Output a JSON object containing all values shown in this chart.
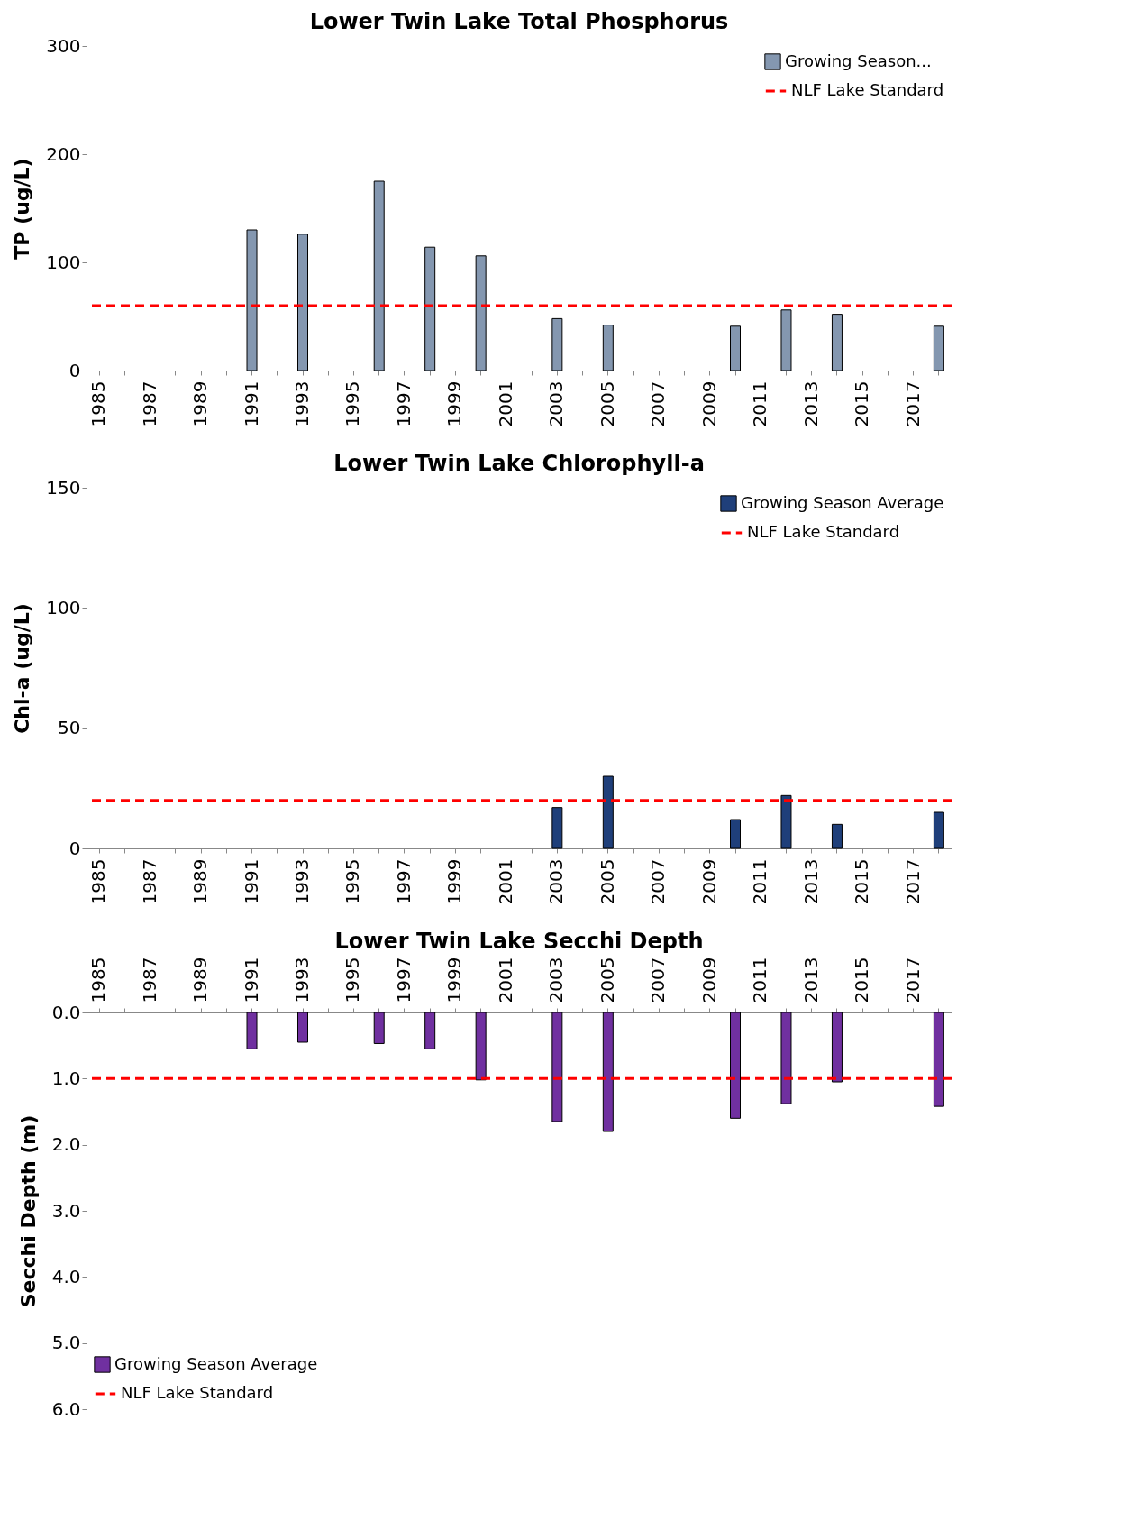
{
  "chart_data": [
    {
      "type": "bar",
      "title": "Lower Twin Lake Total Phosphorus",
      "ylabel": "TP (ug/L)",
      "categories": [
        "1985",
        null,
        "1987",
        null,
        "1989",
        null,
        "1991",
        null,
        "1993",
        null,
        "1995",
        null,
        "1997",
        null,
        "1999",
        null,
        "2001",
        null,
        "2003",
        null,
        "2005",
        null,
        "2007",
        null,
        "2009",
        null,
        "2011",
        null,
        "2013",
        null,
        "2015",
        null,
        "2017",
        null
      ],
      "series": [
        {
          "name": "Growing Season...",
          "color": "#8497b0",
          "values": [
            null,
            null,
            null,
            null,
            null,
            null,
            130,
            null,
            126,
            null,
            null,
            175,
            null,
            114,
            null,
            106,
            null,
            null,
            48,
            null,
            42,
            null,
            null,
            null,
            null,
            41,
            null,
            56,
            null,
            52,
            null,
            null,
            null,
            41
          ]
        }
      ],
      "ylim": [
        0,
        300
      ],
      "yticks": [
        0,
        100,
        200,
        300
      ],
      "grid": false,
      "legend": "top right",
      "ref_lines": [
        {
          "axis": "y",
          "value": 60,
          "label": "NLF Lake Standard",
          "color": "#ff0000",
          "line_style": "dashed"
        }
      ]
    },
    {
      "type": "bar",
      "title": "Lower Twin Lake Chlorophyll-a",
      "ylabel": "Chl-a (ug/L)",
      "categories": [
        "1985",
        null,
        "1987",
        null,
        "1989",
        null,
        "1991",
        null,
        "1993",
        null,
        "1995",
        null,
        "1997",
        null,
        "1999",
        null,
        "2001",
        null,
        "2003",
        null,
        "2005",
        null,
        "2007",
        null,
        "2009",
        null,
        "2011",
        null,
        "2013",
        null,
        "2015",
        null,
        "2017",
        null
      ],
      "series": [
        {
          "name": "Growing Season Average",
          "color": "#1f3f7a",
          "values": [
            null,
            null,
            null,
            null,
            null,
            null,
            null,
            null,
            null,
            null,
            null,
            null,
            null,
            null,
            null,
            null,
            null,
            null,
            17,
            null,
            30,
            null,
            null,
            null,
            null,
            12,
            null,
            22,
            null,
            10,
            null,
            null,
            null,
            15
          ]
        }
      ],
      "ylim": [
        0,
        150
      ],
      "yticks": [
        0,
        50,
        100,
        150
      ],
      "grid": false,
      "legend": "top right",
      "ref_lines": [
        {
          "axis": "y",
          "value": 20,
          "label": "NLF Lake Standard",
          "color": "#ff0000",
          "line_style": "dashed"
        }
      ]
    },
    {
      "type": "bar",
      "title": "Lower Twin Lake Secchi Depth",
      "ylabel": "Secchi Depth (m)",
      "categories": [
        "1985",
        null,
        "1987",
        null,
        "1989",
        null,
        "1991",
        null,
        "1993",
        null,
        "1995",
        null,
        "1997",
        null,
        "1999",
        null,
        "2001",
        null,
        "2003",
        null,
        "2005",
        null,
        "2007",
        null,
        "2009",
        null,
        "2011",
        null,
        "2013",
        null,
        "2015",
        null,
        "2017",
        null
      ],
      "series": [
        {
          "name": "Growing Season Average",
          "color": "#7030a0",
          "values": [
            null,
            null,
            null,
            null,
            null,
            null,
            0.55,
            null,
            0.45,
            null,
            null,
            0.47,
            null,
            0.55,
            null,
            1.02,
            null,
            null,
            1.65,
            null,
            1.8,
            null,
            null,
            null,
            null,
            1.6,
            null,
            1.38,
            null,
            1.05,
            null,
            null,
            null,
            1.42
          ]
        }
      ],
      "ylim": [
        6,
        0
      ],
      "yticks": [
        {
          "value": 0,
          "label": "0.0"
        },
        {
          "value": 1,
          "label": "1.0"
        },
        {
          "value": 2,
          "label": "2.0"
        },
        {
          "value": 3,
          "label": "3.0"
        },
        {
          "value": 4,
          "label": "4.0"
        },
        {
          "value": 5,
          "label": "5.0"
        },
        {
          "value": 6,
          "label": "6.0"
        }
      ],
      "grid": false,
      "legend": "bottom left",
      "ref_lines": [
        {
          "axis": "y",
          "value": 1,
          "label": "NLF Lake Standard",
          "color": "#ff0000",
          "line_style": "dashed"
        }
      ]
    }
  ]
}
